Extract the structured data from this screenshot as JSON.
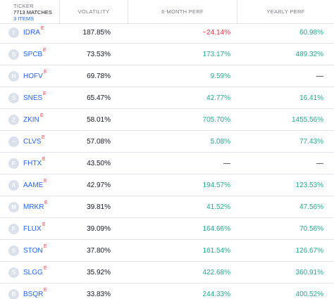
{
  "header": {
    "ticker_label": "TICKER",
    "matches": "7713 MATCHES",
    "items": "3 ITEMS",
    "columns": [
      "VOLATILITY",
      "6-MONTH PERF",
      "YEARLY PERF"
    ]
  },
  "colors": {
    "ticker_link": "#2962ff",
    "positive": "#22ab94",
    "negative": "#f23645",
    "exchange_badge": "#f23645"
  },
  "rows": [
    {
      "logo": "I",
      "symbol": "IDRA",
      "badge": "E",
      "volatility": "187.85%",
      "perf_6m": "−24.14%",
      "perf_6m_dir": "neg",
      "perf_y": "60.98%",
      "perf_y_dir": "pos"
    },
    {
      "logo": "S",
      "symbol": "SPCB",
      "badge": "E",
      "volatility": "73.53%",
      "perf_6m": "173.17%",
      "perf_6m_dir": "pos",
      "perf_y": "489.32%",
      "perf_y_dir": "pos"
    },
    {
      "logo": "H",
      "symbol": "HOFV",
      "badge": "E",
      "volatility": "69.78%",
      "perf_6m": "9.59%",
      "perf_6m_dir": "pos",
      "perf_y": "—",
      "perf_y_dir": "dash"
    },
    {
      "logo": "S",
      "symbol": "SNES",
      "badge": "E",
      "volatility": "65.47%",
      "perf_6m": "42.77%",
      "perf_6m_dir": "pos",
      "perf_y": "16.41%",
      "perf_y_dir": "pos"
    },
    {
      "logo": "Z",
      "symbol": "ZKIN",
      "badge": "E",
      "volatility": "58.01%",
      "perf_6m": "705.70%",
      "perf_6m_dir": "pos",
      "perf_y": "1455.56%",
      "perf_y_dir": "pos"
    },
    {
      "logo": "~",
      "symbol": "CLVS",
      "badge": "E",
      "volatility": "57.08%",
      "perf_6m": "5.08%",
      "perf_6m_dir": "pos",
      "perf_y": "77.43%",
      "perf_y_dir": "pos"
    },
    {
      "logo": "F",
      "symbol": "FHTX",
      "badge": "E",
      "volatility": "43.50%",
      "perf_6m": "—",
      "perf_6m_dir": "dash",
      "perf_y": "—",
      "perf_y_dir": "dash"
    },
    {
      "logo": "A",
      "symbol": "AAME",
      "badge": "E",
      "volatility": "42.97%",
      "perf_6m": "194.57%",
      "perf_6m_dir": "pos",
      "perf_y": "123.53%",
      "perf_y_dir": "pos"
    },
    {
      "logo": "M",
      "symbol": "MRKR",
      "badge": "E",
      "volatility": "39.81%",
      "perf_6m": "41.52%",
      "perf_6m_dir": "pos",
      "perf_y": "47.56%",
      "perf_y_dir": "pos"
    },
    {
      "logo": "F",
      "symbol": "FLUX",
      "badge": "E",
      "volatility": "39.09%",
      "perf_6m": "164.66%",
      "perf_6m_dir": "pos",
      "perf_y": "70.56%",
      "perf_y_dir": "pos"
    },
    {
      "logo": "S",
      "symbol": "STON",
      "badge": "E",
      "volatility": "37.80%",
      "perf_6m": "161.54%",
      "perf_6m_dir": "pos",
      "perf_y": "126.67%",
      "perf_y_dir": "pos"
    },
    {
      "logo": "S",
      "symbol": "SLGG",
      "badge": "E",
      "volatility": "35.92%",
      "perf_6m": "422.68%",
      "perf_6m_dir": "pos",
      "perf_y": "360.91%",
      "perf_y_dir": "pos"
    },
    {
      "logo": "B",
      "symbol": "BSQR",
      "badge": "E",
      "volatility": "33.83%",
      "perf_6m": "244.33%",
      "perf_6m_dir": "pos",
      "perf_y": "400.52%",
      "perf_y_dir": "pos"
    }
  ]
}
